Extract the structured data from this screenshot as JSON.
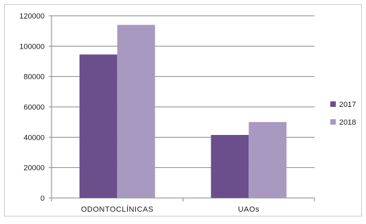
{
  "chart_data": {
    "type": "bar",
    "categories": [
      "ODONTOCLÍNICAS",
      "UAOs"
    ],
    "series": [
      {
        "name": "2017",
        "values": [
          94500,
          41500
        ],
        "color": "#6b4f8c"
      },
      {
        "name": "2018",
        "values": [
          114000,
          50000
        ],
        "color": "#a899c1"
      }
    ],
    "yticks": [
      "0",
      "20000",
      "40000",
      "60000",
      "80000",
      "100000",
      "120000"
    ],
    "ylim": [
      0,
      120000
    ],
    "grid": true,
    "legend_position": "right",
    "title": "",
    "xlabel": "",
    "ylabel": ""
  }
}
